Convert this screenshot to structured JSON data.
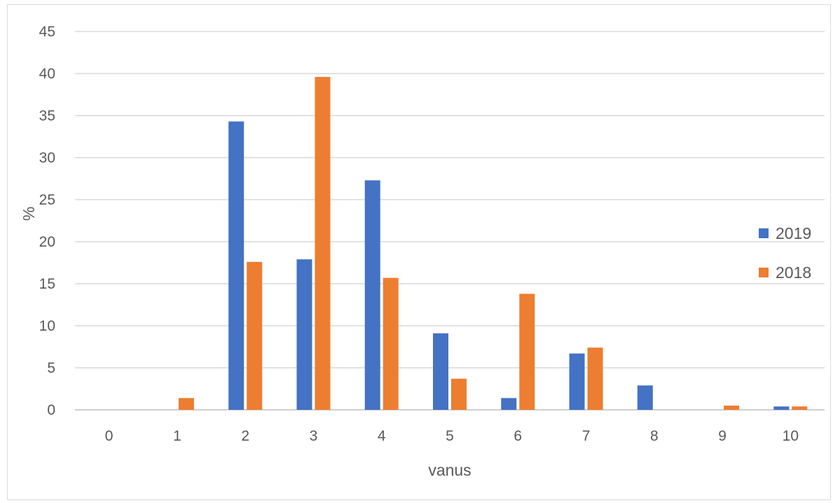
{
  "chart_data": {
    "type": "bar",
    "xlabel": "vanus",
    "ylabel": "%",
    "ylim": [
      0,
      45
    ],
    "yticks": [
      0,
      5,
      10,
      15,
      20,
      25,
      30,
      35,
      40,
      45
    ],
    "categories": [
      "0",
      "1",
      "2",
      "3",
      "4",
      "5",
      "6",
      "7",
      "8",
      "9",
      "10"
    ],
    "grid": true,
    "legend_position": "right",
    "series": [
      {
        "name": "2019",
        "color": "#4472C4",
        "values": [
          0,
          0,
          34.3,
          17.9,
          27.3,
          9.1,
          1.4,
          6.7,
          2.9,
          0,
          0.4
        ]
      },
      {
        "name": "2018",
        "color": "#ED7D31",
        "values": [
          0,
          1.4,
          17.6,
          39.6,
          15.7,
          3.7,
          13.8,
          7.4,
          0,
          0.5,
          0.4
        ]
      }
    ]
  }
}
